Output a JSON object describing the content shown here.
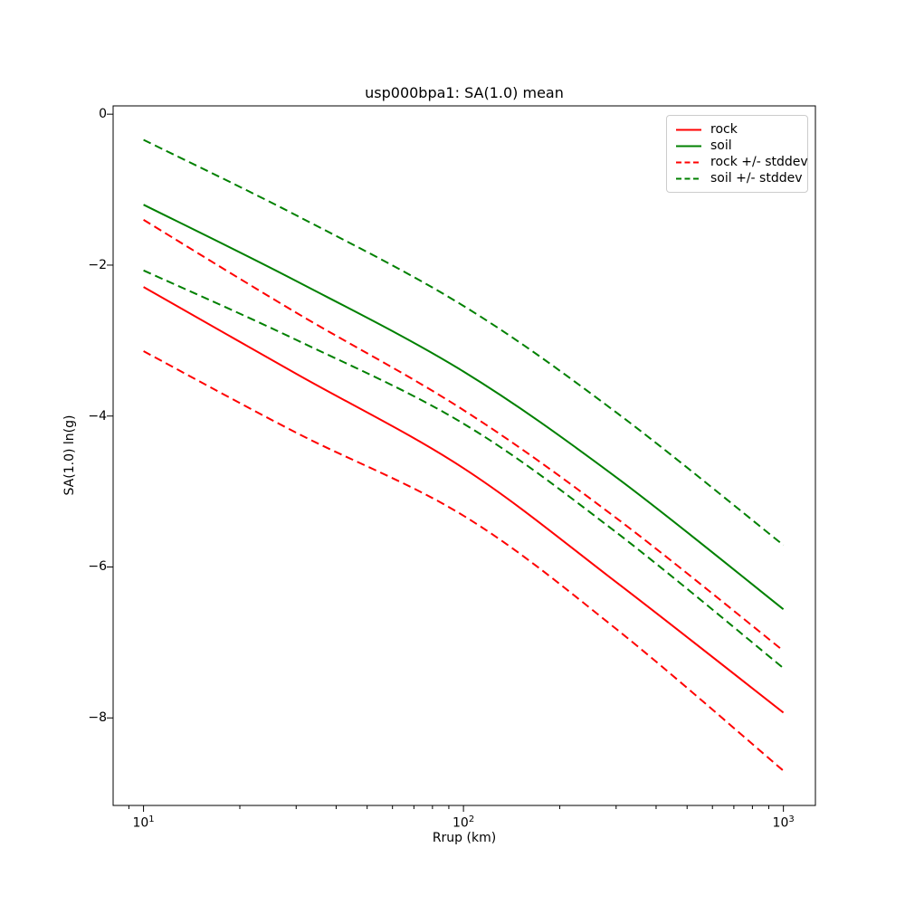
{
  "figure": {
    "background": "#ffffff"
  },
  "chart_data": {
    "type": "line",
    "title": "usp000bpa1: SA(1.0) mean",
    "xlabel": "Rrup (km)",
    "ylabel": "SA(1.0) ln(g)",
    "x_scale": "log",
    "xlim_log10": [
      0.905,
      3.1
    ],
    "ylim": [
      -9.16,
      0.11
    ],
    "grid": false,
    "colors": {
      "rock": "#ff0000",
      "soil": "#008000",
      "axis": "#000000",
      "legend_border": "#cccccc"
    },
    "x_ticks": [
      {
        "value": 10,
        "base": "10",
        "exp": "1"
      },
      {
        "value": 100,
        "base": "10",
        "exp": "2"
      },
      {
        "value": 1000,
        "base": "10",
        "exp": "3"
      }
    ],
    "y_ticks": [
      {
        "value": 0,
        "label": "0"
      },
      {
        "value": -2,
        "label": "−2"
      },
      {
        "value": -4,
        "label": "−4"
      },
      {
        "value": -6,
        "label": "−6"
      },
      {
        "value": -8,
        "label": "−8"
      }
    ],
    "x": [
      10,
      30,
      100,
      300,
      1000
    ],
    "series": [
      {
        "name": "rock",
        "color": "#ff0000",
        "dash": false,
        "values": [
          -2.29,
          -3.44,
          -4.69,
          -6.2,
          -7.93
        ]
      },
      {
        "name": "soil",
        "color": "#008000",
        "dash": false,
        "values": [
          -1.2,
          -2.21,
          -3.41,
          -4.81,
          -6.56
        ]
      },
      {
        "name": "rock +stddev",
        "color": "#ff0000",
        "dash": true,
        "values": [
          -1.4,
          -2.63,
          -3.92,
          -5.35,
          -7.11
        ]
      },
      {
        "name": "rock -stddev",
        "color": "#ff0000",
        "dash": true,
        "values": [
          -3.14,
          -4.22,
          -5.32,
          -6.82,
          -8.7
        ]
      },
      {
        "name": "soil +stddev",
        "color": "#008000",
        "dash": true,
        "values": [
          -0.34,
          -1.34,
          -2.54,
          -3.95,
          -5.71
        ]
      },
      {
        "name": "soil -stddev",
        "color": "#008000",
        "dash": true,
        "values": [
          -2.07,
          -2.99,
          -4.1,
          -5.54,
          -7.34
        ]
      }
    ],
    "legend": {
      "position": "upper right",
      "entries": [
        {
          "label": "rock",
          "color": "#ff0000",
          "dash": false
        },
        {
          "label": "soil",
          "color": "#008000",
          "dash": false
        },
        {
          "label": "rock +/- stddev",
          "color": "#ff0000",
          "dash": true
        },
        {
          "label": "soil +/- stddev",
          "color": "#008000",
          "dash": true
        }
      ]
    }
  }
}
